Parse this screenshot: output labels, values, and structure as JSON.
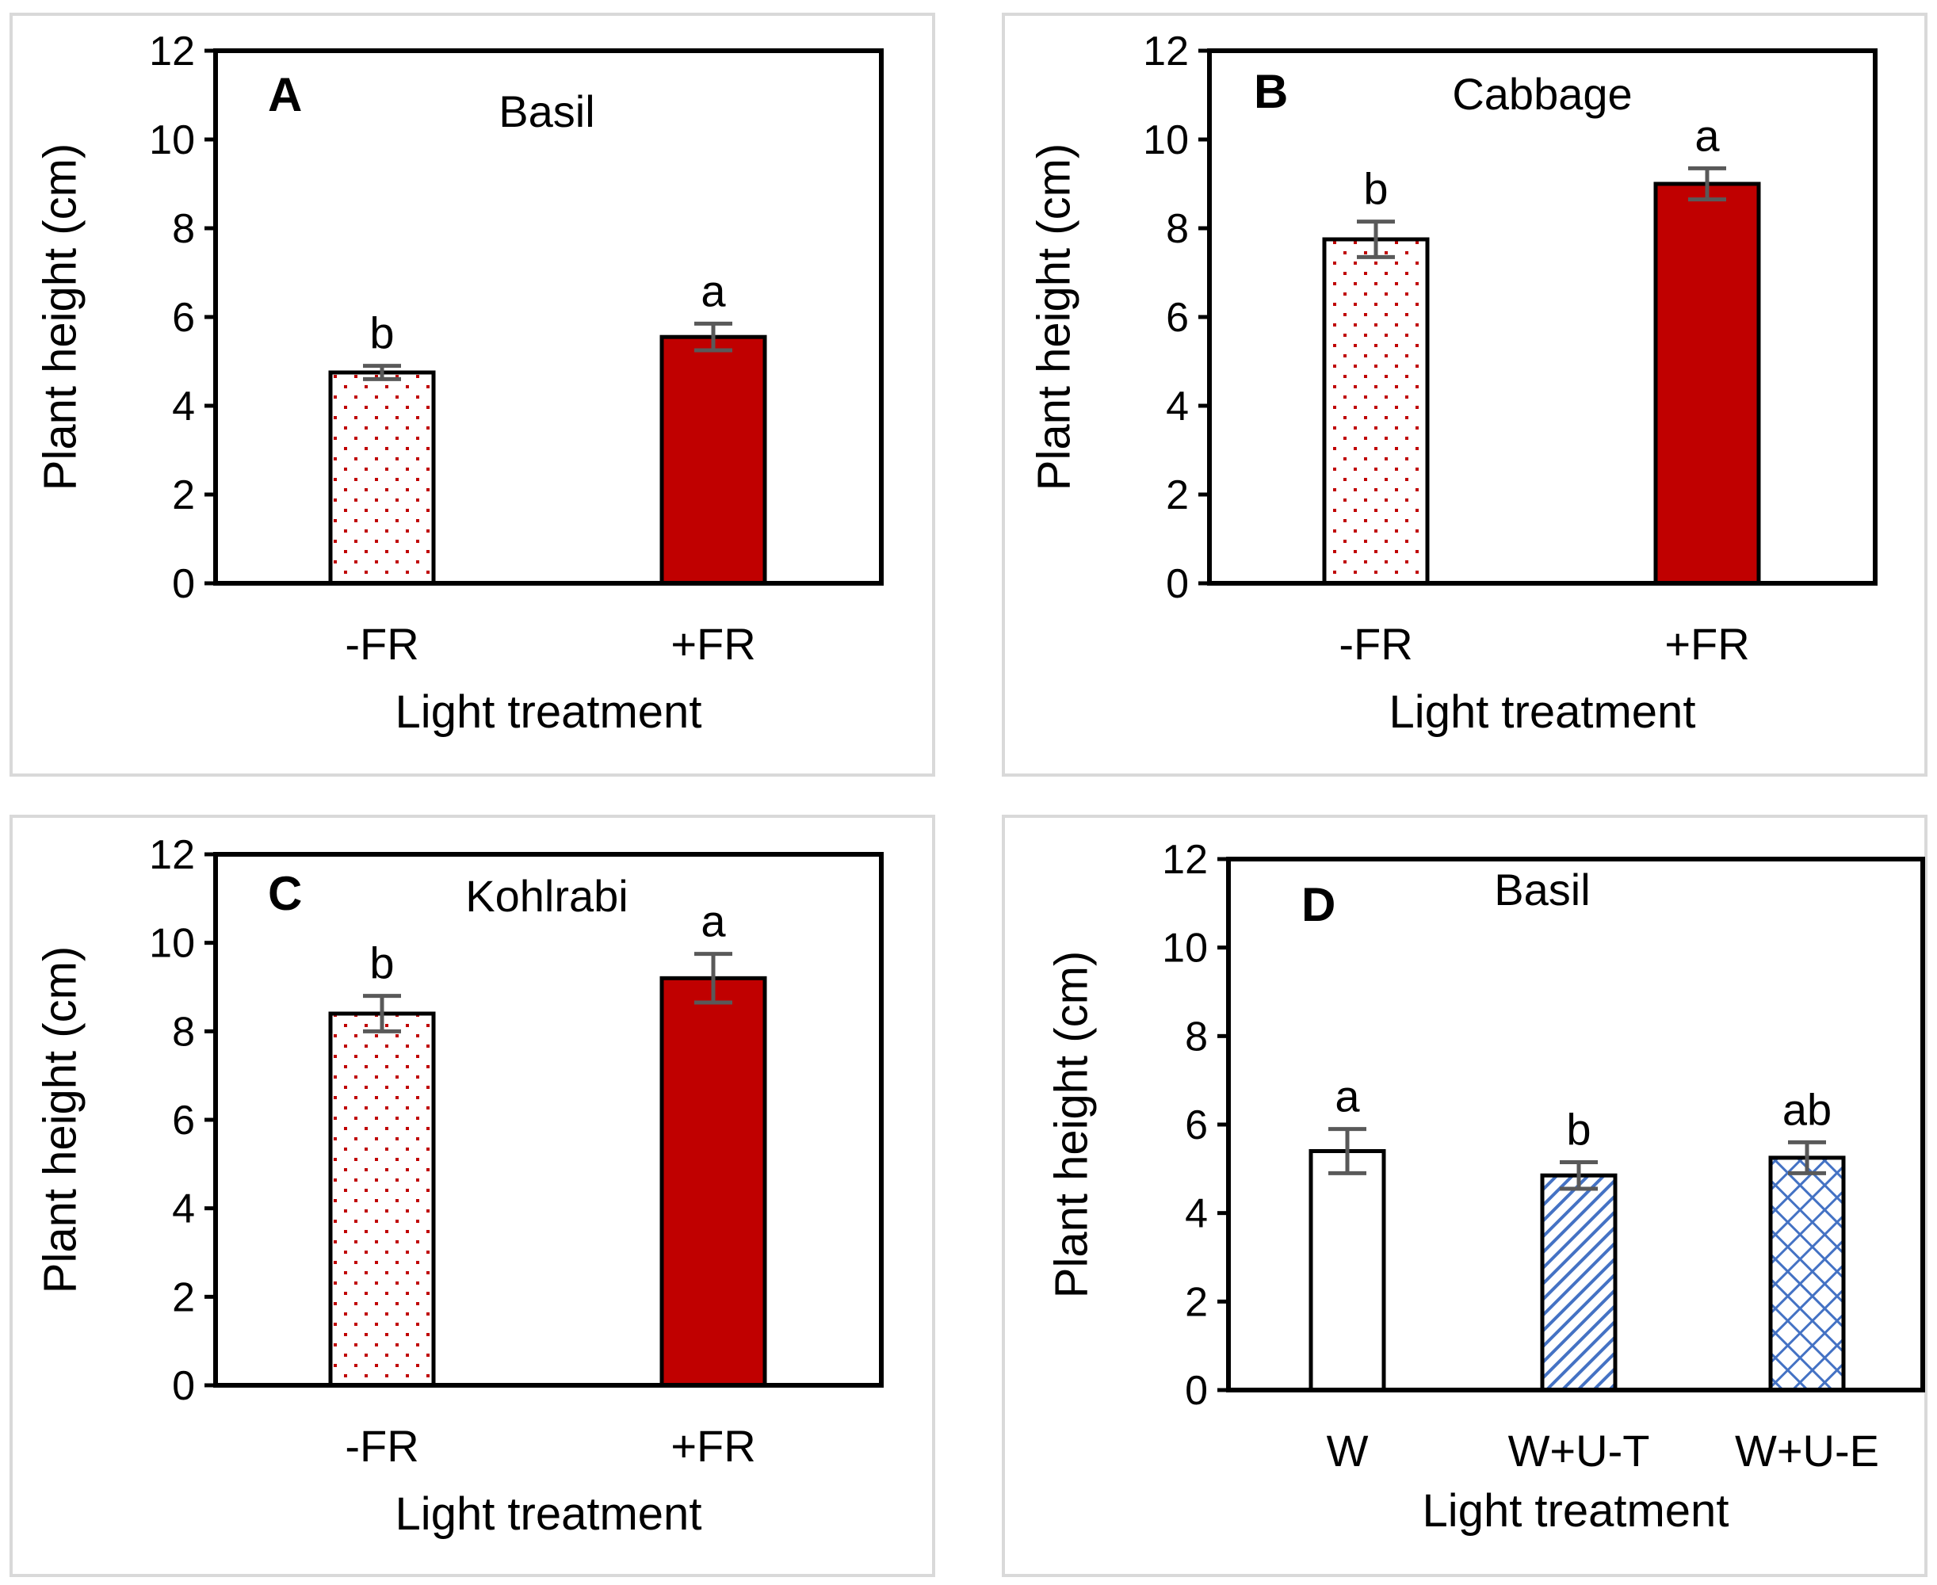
{
  "colors": {
    "frame": "#000000",
    "panel_border": "#d9d9d9",
    "red_fill": "#c00000",
    "dot_color": "#c00000",
    "blue_pattern": "#4472c4",
    "error_bar": "#595959"
  },
  "chart_data": [
    {
      "type": "bar",
      "panel": "A",
      "title": "Basil",
      "categories": [
        "-FR",
        "+FR"
      ],
      "values": [
        4.75,
        5.55
      ],
      "errors": [
        0.15,
        0.3
      ],
      "significance": [
        "b",
        "a"
      ],
      "fills": [
        "dots-red",
        "solid-red"
      ],
      "xlabel": "Light treatment",
      "ylabel": "Plant height (cm)",
      "ylim": [
        0,
        12
      ],
      "yticks": [
        "0",
        "2",
        "4",
        "6",
        "8",
        "10",
        "12"
      ],
      "grid": false
    },
    {
      "type": "bar",
      "panel": "B",
      "title": "Cabbage",
      "categories": [
        "-FR",
        "+FR"
      ],
      "values": [
        7.75,
        9.0
      ],
      "errors": [
        0.4,
        0.35
      ],
      "significance": [
        "b",
        "a"
      ],
      "fills": [
        "dots-red",
        "solid-red"
      ],
      "xlabel": "Light treatment",
      "ylabel": "Plant height (cm)",
      "ylim": [
        0,
        12
      ],
      "yticks": [
        "0",
        "2",
        "4",
        "6",
        "8",
        "10",
        "12"
      ],
      "grid": false
    },
    {
      "type": "bar",
      "panel": "C",
      "title": "Kohlrabi",
      "categories": [
        "-FR",
        "+FR"
      ],
      "values": [
        8.4,
        9.2
      ],
      "errors": [
        0.4,
        0.55
      ],
      "significance": [
        "b",
        "a"
      ],
      "fills": [
        "dots-red",
        "solid-red"
      ],
      "xlabel": "Light treatment",
      "ylabel": "Plant height (cm)",
      "ylim": [
        0,
        12
      ],
      "yticks": [
        "0",
        "2",
        "4",
        "6",
        "8",
        "10",
        "12"
      ],
      "grid": false
    },
    {
      "type": "bar",
      "panel": "D",
      "title": "Basil",
      "categories": [
        "W",
        "W+U-T",
        "W+U-E"
      ],
      "values": [
        5.4,
        4.85,
        5.25
      ],
      "errors": [
        0.5,
        0.3,
        0.35
      ],
      "significance": [
        "a",
        "b",
        "ab"
      ],
      "fills": [
        "white",
        "hatch-blue",
        "crosshatch-blue"
      ],
      "xlabel": "Light treatment",
      "ylabel": "Plant height (cm)",
      "ylim": [
        0,
        12
      ],
      "yticks": [
        "0",
        "2",
        "4",
        "6",
        "8",
        "10",
        "12"
      ],
      "grid": false
    }
  ]
}
